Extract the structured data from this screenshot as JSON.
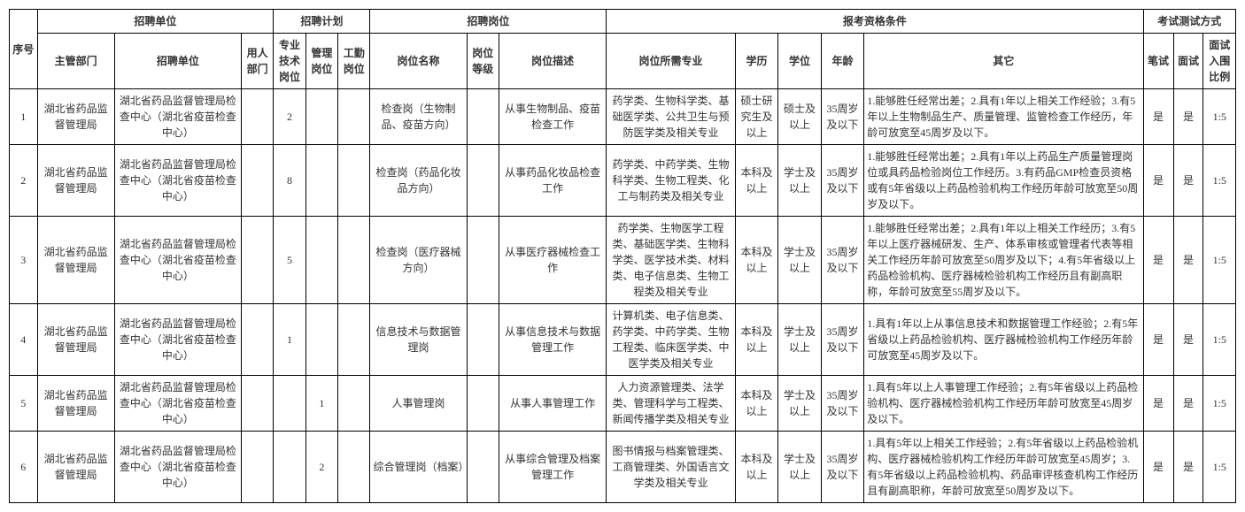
{
  "headers": {
    "seq": "序号",
    "recruit_unit_group": "招聘单位",
    "recruit_plan_group": "招聘计划",
    "recruit_post_group": "招聘岗位",
    "qualification_group": "报考资格条件",
    "exam_group": "考试测试方式",
    "supervising_dept": "主管部门",
    "recruit_unit": "招聘单位",
    "using_dept": "用人部门",
    "tech_post": "专业技术岗位",
    "mgmt_post": "管理岗位",
    "labor_post": "工勤岗位",
    "post_name": "岗位名称",
    "post_level": "岗位等级",
    "post_desc": "岗位描述",
    "required_major": "岗位所需专业",
    "education": "学历",
    "degree": "学位",
    "age": "年龄",
    "other": "其它",
    "written_exam": "笔试",
    "interview": "面试",
    "interview_ratio": "面试入围比例"
  },
  "rows": [
    {
      "seq": "1",
      "supervising_dept": "湖北省药品监督管理局",
      "recruit_unit": "湖北省药品监督管理局检查中心（湖北省疫苗检查中心）",
      "using_dept": "",
      "tech_post": "2",
      "mgmt_post": "",
      "labor_post": "",
      "post_name": "检查岗（生物制品、疫苗方向）",
      "post_level": "",
      "post_desc": "从事生物制品、疫苗检查工作",
      "required_major": "药学类、生物科学类、基础医学类、公共卫生与预防医学类及相关专业",
      "education": "硕士研究生及以上",
      "degree": "硕士及以上",
      "age": "35周岁及以下",
      "other": "1.能够胜任经常出差；2.具有1年以上相关工作经验；3.有5年以上生物制品生产、质量管理、监管检查工作经历，年龄可放宽至45周岁及以下。",
      "written_exam": "是",
      "interview": "是",
      "interview_ratio": "1:5"
    },
    {
      "seq": "2",
      "supervising_dept": "湖北省药品监督管理局",
      "recruit_unit": "湖北省药品监督管理局检查中心（湖北省疫苗检查中心）",
      "using_dept": "",
      "tech_post": "8",
      "mgmt_post": "",
      "labor_post": "",
      "post_name": "检查岗（药品化妆品方向）",
      "post_level": "",
      "post_desc": "从事药品化妆品检查工作",
      "required_major": "药学类、中药学类、生物科学类、生物工程类、化工与制药类及相关专业",
      "education": "本科及以上",
      "degree": "学士及以上",
      "age": "35周岁及以下",
      "other": "1.能够胜任经常出差；2.具有1年以上药品生产质量管理岗位或具药品检验岗位工作经历。3.有药品GMP检查员资格或有5年省级以上药品检验机构工作经历年龄可放宽至50周岁及以下。",
      "written_exam": "是",
      "interview": "是",
      "interview_ratio": "1:5"
    },
    {
      "seq": "3",
      "supervising_dept": "湖北省药品监督管理局",
      "recruit_unit": "湖北省药品监督管理局检查中心（湖北省疫苗检查中心）",
      "using_dept": "",
      "tech_post": "5",
      "mgmt_post": "",
      "labor_post": "",
      "post_name": "检查岗（医疗器械方向）",
      "post_level": "",
      "post_desc": "从事医疗器械检查工作",
      "required_major": "药学类、生物医学工程类、基础医学类、生物科学类、医学技术类、材料类、电子信息类、生物工程类及相关专业",
      "education": "本科及以上",
      "degree": "学士及以上",
      "age": "35周岁及以下",
      "other": "1.能够胜任经常出差；2.具有1年以上相关工作经历；3.有5年以上医疗器械研发、生产、体系审核或管理者代表等相关工作经历年龄可放宽至50周岁及以下；4.有5年省级以上药品检验机构、医疗器械检验机构工作经历且有副高职称，年龄可放宽至55周岁及以下。",
      "written_exam": "是",
      "interview": "是",
      "interview_ratio": "1:5"
    },
    {
      "seq": "4",
      "supervising_dept": "湖北省药品监督管理局",
      "recruit_unit": "湖北省药品监督管理局检查中心（湖北省疫苗检查中心）",
      "using_dept": "",
      "tech_post": "1",
      "mgmt_post": "",
      "labor_post": "",
      "post_name": "信息技术与数据管理岗",
      "post_level": "",
      "post_desc": "从事信息技术与数据管理工作",
      "required_major": "计算机类、电子信息类、药学类、中药学类、生物工程类、临床医学类、中医学类及相关专业",
      "education": "本科及以上",
      "degree": "学士及以上",
      "age": "35周岁及以下",
      "other": "1.具有1年以上从事信息技术和数据管理工作经验；2.有5年省级以上药品检验机构、医疗器械检验机构工作经历年龄可放宽至45周岁及以下。",
      "written_exam": "是",
      "interview": "是",
      "interview_ratio": "1:5"
    },
    {
      "seq": "5",
      "supervising_dept": "湖北省药品监督管理局",
      "recruit_unit": "湖北省药品监督管理局检查中心（湖北省疫苗检查中心）",
      "using_dept": "",
      "tech_post": "",
      "mgmt_post": "1",
      "labor_post": "",
      "post_name": "人事管理岗",
      "post_level": "",
      "post_desc": "从事人事管理工作",
      "required_major": "人力资源管理类、法学类、管理科学与工程类、新闻传播学类及相关专业",
      "education": "本科及以上",
      "degree": "学士及以上",
      "age": "35周岁及以下",
      "other": "1.具有5年以上人事管理工作经验；2.有5年省级以上药品检验机构、医疗器械检验机构工作经历年龄可放宽至45周岁及以下。",
      "written_exam": "是",
      "interview": "是",
      "interview_ratio": "1:5"
    },
    {
      "seq": "6",
      "supervising_dept": "湖北省药品监督管理局",
      "recruit_unit": "湖北省药品监督管理局检查中心（湖北省疫苗检查中心）",
      "using_dept": "",
      "tech_post": "",
      "mgmt_post": "2",
      "labor_post": "",
      "post_name": "综合管理岗（档案）",
      "post_level": "",
      "post_desc": "从事综合管理及档案管理工作",
      "required_major": "图书情报与档案管理类、工商管理类、外国语言文学类及相关专业",
      "education": "本科及以上",
      "degree": "学士及以上",
      "age": "35周岁及以下",
      "other": "1.具有5年以上相关工作经验；2.有5年省级以上药品检验机构、医疗器械检验机构工作经历年龄可放宽至45周岁；3.有5年省级以上药品检验机构、药品审评核查机构工作经历且有副高职称，年龄可放宽至50周岁及以下。",
      "written_exam": "是",
      "interview": "是",
      "interview_ratio": "1:5"
    }
  ]
}
